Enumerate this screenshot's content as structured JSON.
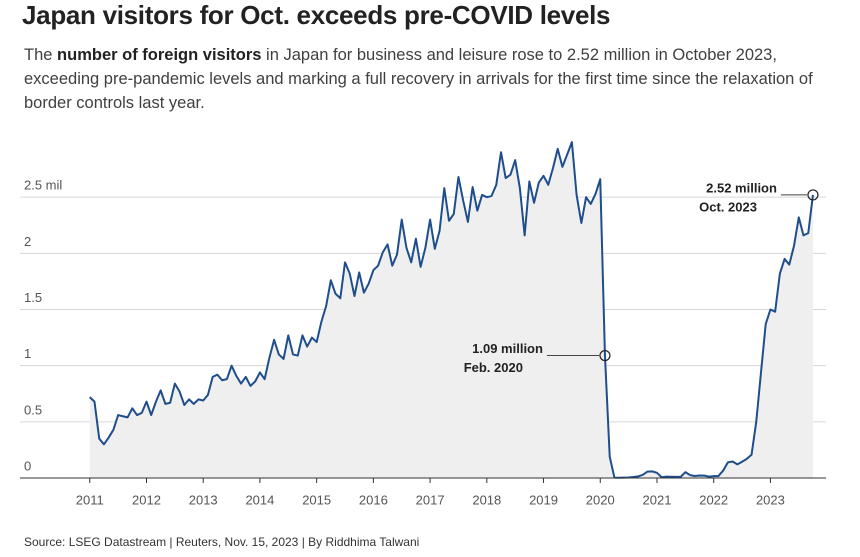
{
  "chart_data": {
    "type": "area-line",
    "title": "Japan visitors for Oct. exceeds pre-COVID levels",
    "subtitle": [
      {
        "text": "The "
      },
      {
        "text": "number of foreign visitors",
        "bold": true
      },
      {
        "text": " in Japan for business and leisure rose to 2.52 million in October 2023, exceeding pre-pandemic levels and marking a full recovery in arrivals for the first time since the relaxation of border controls last year."
      }
    ],
    "source": "Source: LSEG Datastream | Reuters, Nov. 15, 2023 | By Riddhima Talwani",
    "x": [
      2011,
      2011.083,
      2011.167,
      2011.25,
      2011.333,
      2011.417,
      2011.5,
      2011.583,
      2011.667,
      2011.75,
      2011.833,
      2011.917,
      2012,
      2012.083,
      2012.167,
      2012.25,
      2012.333,
      2012.417,
      2012.5,
      2012.583,
      2012.667,
      2012.75,
      2012.833,
      2012.917,
      2013,
      2013.083,
      2013.167,
      2013.25,
      2013.333,
      2013.417,
      2013.5,
      2013.583,
      2013.667,
      2013.75,
      2013.833,
      2013.917,
      2014,
      2014.083,
      2014.167,
      2014.25,
      2014.333,
      2014.417,
      2014.5,
      2014.583,
      2014.667,
      2014.75,
      2014.833,
      2014.917,
      2015,
      2015.083,
      2015.167,
      2015.25,
      2015.333,
      2015.417,
      2015.5,
      2015.583,
      2015.667,
      2015.75,
      2015.833,
      2015.917,
      2016,
      2016.083,
      2016.167,
      2016.25,
      2016.333,
      2016.417,
      2016.5,
      2016.583,
      2016.667,
      2016.75,
      2016.833,
      2016.917,
      2017,
      2017.083,
      2017.167,
      2017.25,
      2017.333,
      2017.417,
      2017.5,
      2017.583,
      2017.667,
      2017.75,
      2017.833,
      2017.917,
      2018,
      2018.083,
      2018.167,
      2018.25,
      2018.333,
      2018.417,
      2018.5,
      2018.583,
      2018.667,
      2018.75,
      2018.833,
      2018.917,
      2019,
      2019.083,
      2019.167,
      2019.25,
      2019.333,
      2019.417,
      2019.5,
      2019.583,
      2019.667,
      2019.75,
      2019.833,
      2019.917,
      2020,
      2020.083,
      2020.167,
      2020.25,
      2020.333,
      2020.417,
      2020.5,
      2020.583,
      2020.667,
      2020.75,
      2020.833,
      2020.917,
      2021,
      2021.083,
      2021.167,
      2021.25,
      2021.333,
      2021.417,
      2021.5,
      2021.583,
      2021.667,
      2021.75,
      2021.833,
      2021.917,
      2022,
      2022.083,
      2022.167,
      2022.25,
      2022.333,
      2022.417,
      2022.5,
      2022.583,
      2022.667,
      2022.75,
      2022.833,
      2022.917,
      2023,
      2023.083,
      2023.167,
      2023.25,
      2023.333,
      2023.417,
      2023.5,
      2023.583,
      2023.667,
      2023.75
    ],
    "series": [
      {
        "color": "#1f4e8c",
        "fill": "#efefef",
        "values": [
          0.72,
          0.68,
          0.35,
          0.3,
          0.36,
          0.43,
          0.56,
          0.55,
          0.54,
          0.62,
          0.56,
          0.58,
          0.68,
          0.56,
          0.68,
          0.78,
          0.66,
          0.67,
          0.84,
          0.77,
          0.65,
          0.7,
          0.66,
          0.7,
          0.69,
          0.74,
          0.9,
          0.92,
          0.87,
          0.88,
          1.0,
          0.91,
          0.84,
          0.9,
          0.82,
          0.86,
          0.94,
          0.88,
          1.07,
          1.23,
          1.1,
          1.06,
          1.27,
          1.1,
          1.09,
          1.27,
          1.17,
          1.25,
          1.21,
          1.39,
          1.53,
          1.76,
          1.64,
          1.6,
          1.92,
          1.82,
          1.62,
          1.83,
          1.65,
          1.73,
          1.85,
          1.89,
          2.01,
          2.08,
          1.89,
          1.99,
          2.3,
          2.05,
          1.92,
          2.13,
          1.88,
          2.05,
          2.3,
          2.04,
          2.2,
          2.58,
          2.29,
          2.35,
          2.68,
          2.47,
          2.28,
          2.59,
          2.38,
          2.52,
          2.5,
          2.51,
          2.61,
          2.9,
          2.67,
          2.7,
          2.83,
          2.58,
          2.16,
          2.64,
          2.45,
          2.63,
          2.69,
          2.61,
          2.76,
          2.93,
          2.77,
          2.88,
          2.99,
          2.52,
          2.27,
          2.5,
          2.44,
          2.53,
          2.66,
          1.09,
          0.19,
          0.003,
          0.002,
          0.003,
          0.004,
          0.009,
          0.014,
          0.028,
          0.057,
          0.059,
          0.046,
          0.007,
          0.012,
          0.011,
          0.01,
          0.01,
          0.052,
          0.026,
          0.018,
          0.022,
          0.021,
          0.012,
          0.017,
          0.017,
          0.066,
          0.139,
          0.147,
          0.121,
          0.145,
          0.17,
          0.207,
          0.499,
          0.935,
          1.37,
          1.5,
          1.48,
          1.82,
          1.95,
          1.9,
          2.07,
          2.32,
          2.16,
          2.18,
          2.52
        ]
      }
    ],
    "xlim": [
      2009.77,
      2023.98
    ],
    "xticks": [
      2011,
      2012,
      2013,
      2014,
      2015,
      2016,
      2017,
      2018,
      2019,
      2020,
      2021,
      2022,
      2023
    ],
    "ylim": [
      0,
      3
    ],
    "yticks": [
      0,
      0.5,
      1,
      1.5,
      2,
      {
        "value": 2.5,
        "label": "2.5 mil"
      }
    ],
    "grid": true,
    "annotations": [
      {
        "x": 2020.083,
        "label": "1.09 million",
        "sublabel": "Feb. 2020"
      },
      {
        "x": 2023.75,
        "label": "2.52 million",
        "sublabel": "Oct. 2023"
      }
    ]
  }
}
